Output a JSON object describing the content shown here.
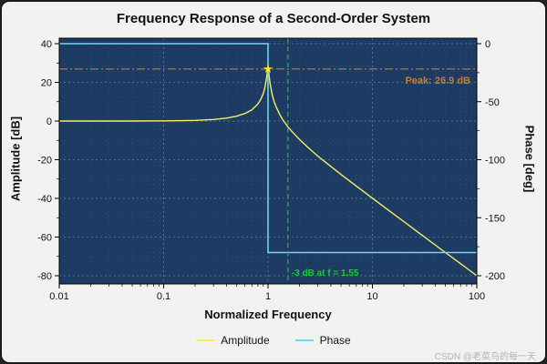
{
  "title": "Frequency Response of a Second-Order System",
  "watermark": "CSDN @老菜鸟的每一天",
  "legend": [
    {
      "label": "Amplitude",
      "color": "#f2f261"
    },
    {
      "label": "Phase",
      "color": "#6fd8e8"
    }
  ],
  "chart_data": {
    "type": "line",
    "title": "Frequency Response of a Second-Order System",
    "xlabel": "Normalized Frequency",
    "ylabel_left": "Amplitude [dB]",
    "ylabel_right": "Phase [deg]",
    "x_scale": "log",
    "xlim": [
      0.01,
      100
    ],
    "ylim_left": [
      -80,
      40
    ],
    "ylim_right": [
      -200,
      0
    ],
    "x_ticks": [
      0.01,
      0.1,
      1,
      10,
      100
    ],
    "x_tick_labels": [
      "0.01",
      "0.1",
      "1",
      "10",
      "100"
    ],
    "y_ticks_left": [
      40,
      20,
      0,
      -20,
      -40,
      -60,
      -80
    ],
    "y_ticks_right": [
      0,
      -50,
      -100,
      -150,
      -200
    ],
    "grid": true,
    "legend_position": "bottom",
    "plot_background": "#1e3c63",
    "grid_color": "#7d95ba",
    "series": [
      {
        "name": "Amplitude",
        "axis": "left",
        "color": "#f2f261",
        "x": [
          0.01,
          0.02,
          0.05,
          0.1,
          0.15,
          0.2,
          0.3,
          0.4,
          0.5,
          0.6,
          0.7,
          0.8,
          0.85,
          0.9,
          0.93,
          0.95,
          0.97,
          0.99,
          1.0,
          1.01,
          1.03,
          1.05,
          1.1,
          1.15,
          1.2,
          1.3,
          1.4,
          1.55,
          1.7,
          2,
          2.5,
          3,
          4,
          5,
          7,
          10,
          15,
          20,
          30,
          50,
          70,
          100
        ],
        "y": [
          0,
          0,
          0.02,
          0.09,
          0.2,
          0.35,
          0.82,
          1.5,
          2.5,
          3.9,
          5.8,
          8.8,
          11.1,
          14.2,
          17.0,
          19.5,
          22.7,
          26.2,
          26.9,
          26.1,
          22.3,
          18.9,
          13.3,
          9.7,
          7.1,
          3.2,
          0.3,
          -3.0,
          -5.5,
          -9.5,
          -14.4,
          -18.1,
          -23.5,
          -27.6,
          -33.6,
          -39.9,
          -47.0,
          -52.0,
          -59.1,
          -68.0,
          -73.8,
          -80.0
        ]
      },
      {
        "name": "Phase",
        "axis": "right",
        "color": "#6fd8e8",
        "x": [
          0.01,
          1,
          1,
          100
        ],
        "y": [
          0,
          0,
          -180,
          -180
        ]
      }
    ],
    "annotations": {
      "peak_line": {
        "y": 26.9,
        "axis": "left",
        "style": "dash-dot",
        "color": "#c87d28",
        "label": "Peak: 26.9 dB"
      },
      "cutoff_line": {
        "x": 1.55,
        "style": "dashed",
        "color": "#1ec83c",
        "label": "-3 dB at f = 1.55"
      },
      "peak_marker": {
        "x": 1.0,
        "y": 26.9,
        "shape": "star",
        "color": "#ffe81a"
      }
    }
  }
}
